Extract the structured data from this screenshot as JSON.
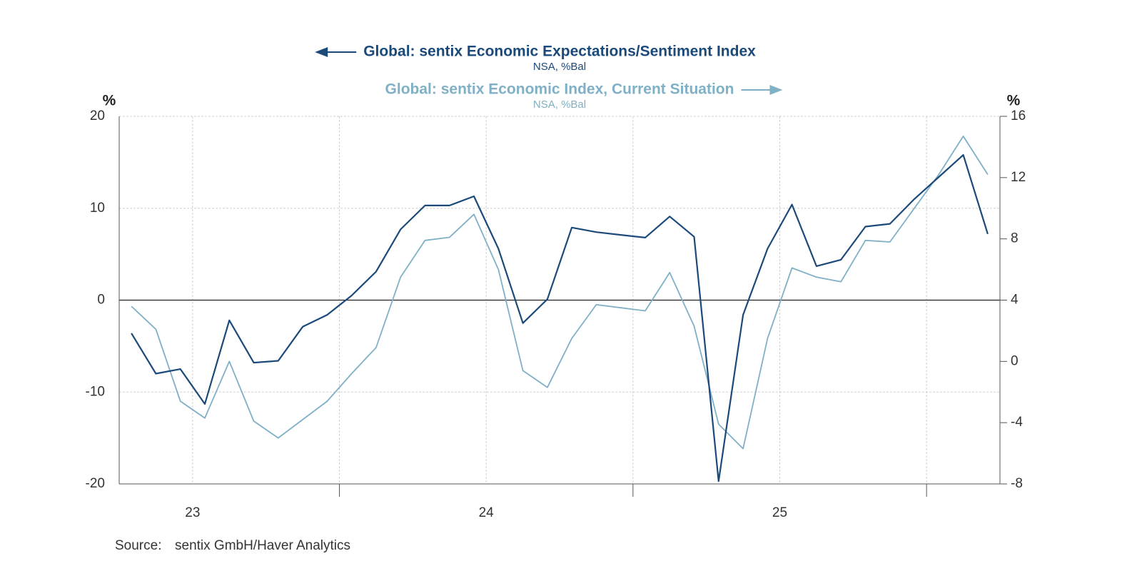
{
  "chart_data": {
    "type": "line",
    "categories": [
      null,
      null,
      null,
      "23",
      null,
      null,
      null,
      null,
      null,
      null,
      null,
      null,
      null,
      null,
      null,
      "24",
      null,
      null,
      null,
      null,
      null,
      null,
      null,
      null,
      null,
      null,
      null,
      "25",
      null,
      null,
      null,
      null,
      null,
      null,
      null,
      null
    ],
    "series": [
      {
        "name": "Global: sentix Economic Expectations/Sentiment Index",
        "unit": "NSA, %Bal",
        "color": "#1b4a7a",
        "axis": "y",
        "values": [
          -3.6,
          -8.0,
          -7.5,
          -11.3,
          -2.2,
          -6.8,
          -6.6,
          -2.9,
          -1.6,
          0.5,
          3.1,
          7.7,
          10.3,
          10.3,
          11.3,
          5.6,
          -2.5,
          0.1,
          7.9,
          7.4,
          7.1,
          6.8,
          9.1,
          6.9,
          -19.7,
          -1.6,
          5.6,
          10.4,
          3.7,
          4.4,
          8.0,
          8.3,
          11.0,
          13.4,
          15.8,
          7.2
        ]
      },
      {
        "name": "Global: sentix Economic Index, Current Situation",
        "unit": "NSA, %Bal",
        "color": "#7fb0c6",
        "axis": "y2",
        "values": [
          3.6,
          2.1,
          -2.6,
          -3.7,
          0.0,
          -3.9,
          -5.0,
          -3.8,
          -2.6,
          -0.8,
          0.9,
          5.5,
          7.9,
          8.1,
          9.6,
          6.0,
          -0.6,
          -1.7,
          1.5,
          3.7,
          3.5,
          3.3,
          5.8,
          2.3,
          -4.1,
          -5.7,
          1.5,
          6.1,
          5.5,
          5.2,
          7.9,
          7.8,
          10.0,
          12.2,
          14.7,
          12.2
        ]
      }
    ],
    "ylabel": "%",
    "y2label": "%",
    "ylim": [
      -20,
      20
    ],
    "yticks": [
      -20,
      -10,
      0,
      10,
      20
    ],
    "y2lim": [
      -8,
      16
    ],
    "y2ticks": [
      -8,
      -4,
      0,
      4,
      8,
      12,
      16
    ],
    "grid": true,
    "source": {
      "label": "Source:",
      "text": "sentix GmbH/Haver Analytics"
    }
  }
}
